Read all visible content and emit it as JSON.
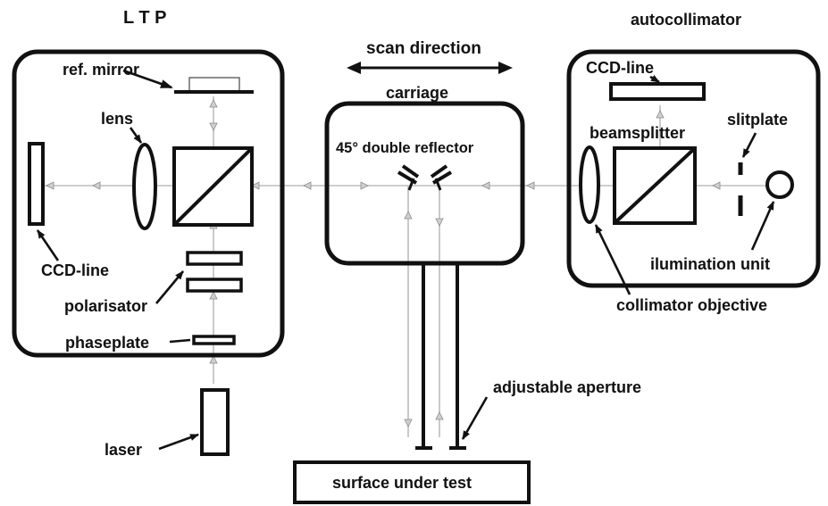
{
  "labels": {
    "ltp": "L T P",
    "autocollimator": "autocollimator",
    "scan_direction": "scan direction",
    "carriage": "carriage",
    "ref_mirror": "ref. mirror",
    "lens": "lens",
    "ccd_line_left": "CCD-line",
    "polarisator": "polarisator",
    "phaseplate": "phaseplate",
    "laser": "laser",
    "double_reflector": "45° double reflector",
    "ccd_line_right": "CCD-line",
    "beamsplitter": "beamsplitter",
    "slitplate": "slitplate",
    "ilumination_unit": "ilumination unit",
    "collimator_objective": "collimator objective",
    "adjustable_aperture": "adjustable aperture",
    "surface_under_test": "surface under test"
  },
  "colors": {
    "ink": "#111111",
    "beam": "#bdbdbd"
  }
}
